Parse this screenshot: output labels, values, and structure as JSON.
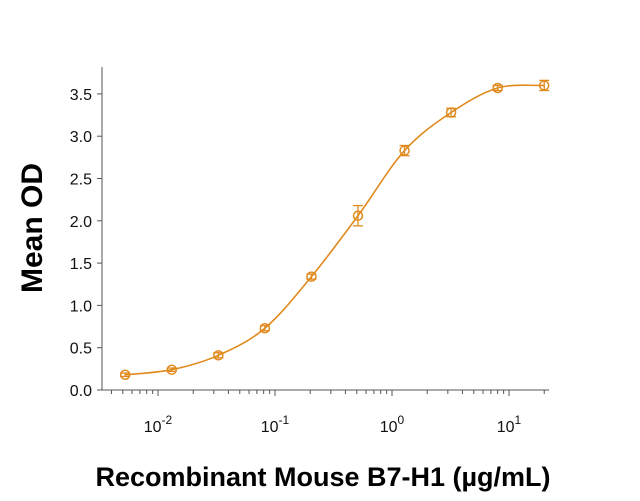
{
  "chart_data": {
    "type": "line",
    "xlabel": "Recombinant Mouse B7-H1 (µg/mL)",
    "ylabel": "Mean OD",
    "xscale": "log",
    "xlim": [
      0.0033,
      22
    ],
    "ylim": [
      0,
      3.85
    ],
    "yticks": [
      "0.0",
      "0.5",
      "1.0",
      "1.5",
      "2.0",
      "2.5",
      "3.0",
      "3.5"
    ],
    "xticks": [
      {
        "base": "10",
        "exp": "-2"
      },
      {
        "base": "10",
        "exp": "-1"
      },
      {
        "base": "10",
        "exp": "0"
      },
      {
        "base": "10",
        "exp": "1"
      }
    ],
    "grid": false,
    "legend": "none",
    "color": "#e08a1e",
    "series": [
      {
        "x": [
          0.00524,
          0.0131,
          0.0328,
          0.0819,
          0.2048,
          0.512,
          1.28,
          3.2,
          8,
          20
        ],
        "y": [
          0.18,
          0.24,
          0.41,
          0.73,
          1.34,
          2.06,
          2.83,
          3.28,
          3.57,
          3.6
        ],
        "error": [
          0.02,
          0.02,
          0.03,
          0.03,
          0.03,
          0.12,
          0.06,
          0.05,
          0.03,
          0.06
        ]
      }
    ]
  }
}
